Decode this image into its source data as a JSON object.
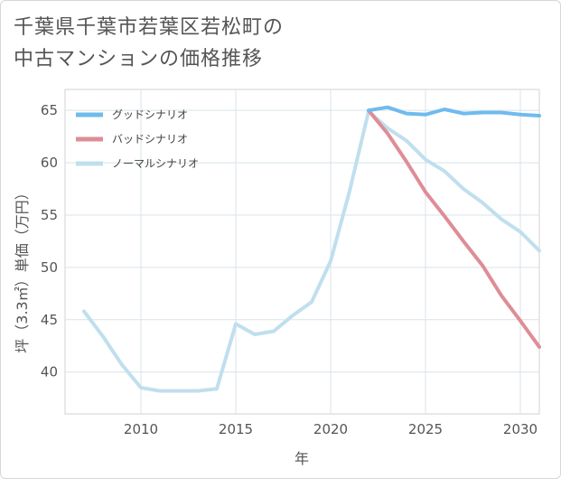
{
  "title_lines": [
    "千葉県千葉市若葉区若松町の",
    "中古マンションの価格推移"
  ],
  "chart_data": {
    "type": "line",
    "title": "千葉県千葉市若葉区若松町の中古マンションの価格推移",
    "xlabel": "年",
    "ylabel": "坪（3.3㎡）単価（万円）",
    "xlim": [
      2006,
      2031
    ],
    "ylim": [
      36,
      67
    ],
    "xticks": [
      2010,
      2015,
      2020,
      2025,
      2030
    ],
    "yticks": [
      40,
      45,
      50,
      55,
      60,
      65
    ],
    "grid": true,
    "legend_position": "top-left",
    "series": [
      {
        "name": "グッドシナリオ",
        "color": "#6fbbee",
        "x": [
          2022,
          2023,
          2024,
          2025,
          2026,
          2027,
          2028,
          2029,
          2030,
          2031
        ],
        "y": [
          65.0,
          65.3,
          64.7,
          64.6,
          65.1,
          64.7,
          64.8,
          64.8,
          64.6,
          64.5
        ]
      },
      {
        "name": "バッドシナリオ",
        "color": "#de8d96",
        "x": [
          2022,
          2023,
          2024,
          2025,
          2026,
          2027,
          2028,
          2029,
          2030,
          2031
        ],
        "y": [
          65.0,
          62.8,
          60.1,
          57.2,
          54.9,
          52.5,
          50.2,
          47.3,
          44.9,
          42.4
        ]
      },
      {
        "name": "ノーマルシナリオ",
        "color": "#c0dfee",
        "x": [
          2007,
          2008,
          2009,
          2010,
          2011,
          2012,
          2013,
          2014,
          2015,
          2016,
          2017,
          2018,
          2019,
          2020,
          2021,
          2022,
          2023,
          2024,
          2025,
          2026,
          2027,
          2028,
          2029,
          2030,
          2031
        ],
        "y": [
          45.8,
          43.4,
          40.7,
          38.5,
          38.2,
          38.2,
          38.2,
          38.4,
          44.6,
          43.6,
          43.9,
          45.4,
          46.7,
          50.6,
          57.3,
          64.9,
          63.3,
          62.1,
          60.3,
          59.2,
          57.5,
          56.2,
          54.6,
          53.4,
          51.6
        ]
      }
    ]
  }
}
